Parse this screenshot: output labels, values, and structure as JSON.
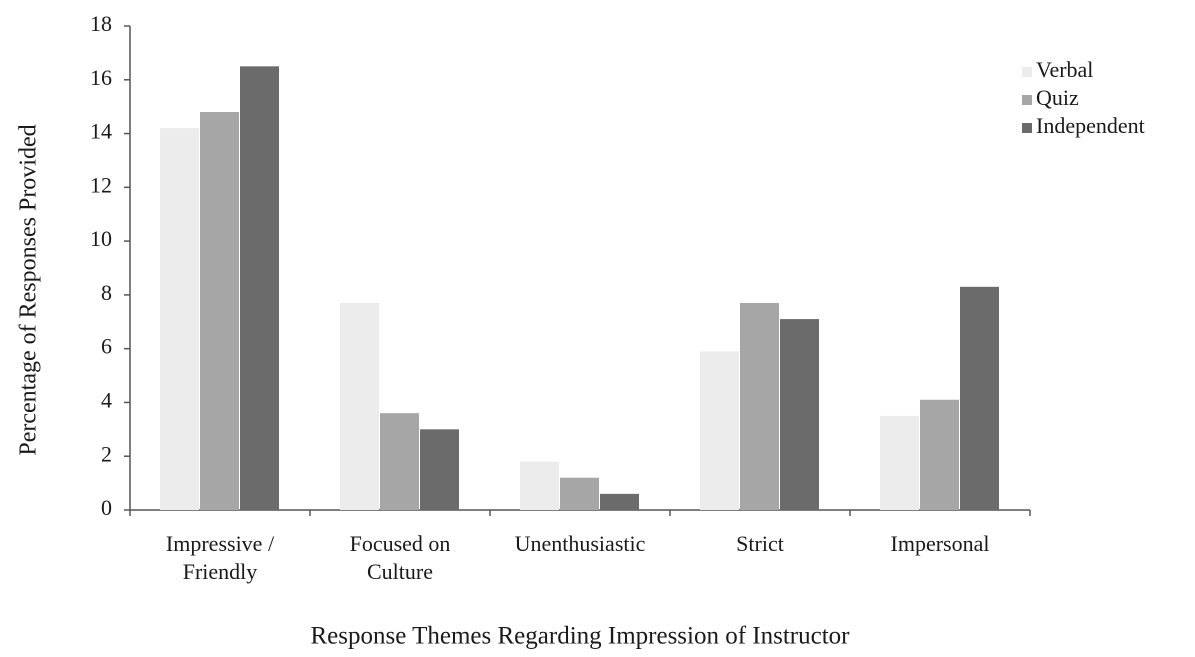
{
  "chart_data": {
    "type": "bar",
    "y_label": "Percentage of Responses Provided",
    "x_label": "Response Themes Regarding Impression of Instructor",
    "categories": [
      "Impressive /\nFriendly",
      "Focused on\nCulture",
      "Unenthusiastic",
      "Strict",
      "Impersonal"
    ],
    "series": [
      {
        "name": "Verbal",
        "color": "#ececec",
        "values": [
          14.2,
          7.7,
          1.8,
          5.9,
          3.5
        ]
      },
      {
        "name": "Quiz",
        "color": "#a6a6a6",
        "values": [
          14.8,
          3.6,
          1.2,
          7.7,
          4.1
        ]
      },
      {
        "name": "Independent",
        "color": "#6b6b6b",
        "values": [
          16.5,
          3.0,
          0.6,
          7.1,
          8.3
        ]
      }
    ],
    "ylim": [
      0,
      18
    ],
    "yticks": [
      0,
      2,
      4,
      6,
      8,
      10,
      12,
      14,
      16,
      18
    ],
    "legend": "right"
  }
}
